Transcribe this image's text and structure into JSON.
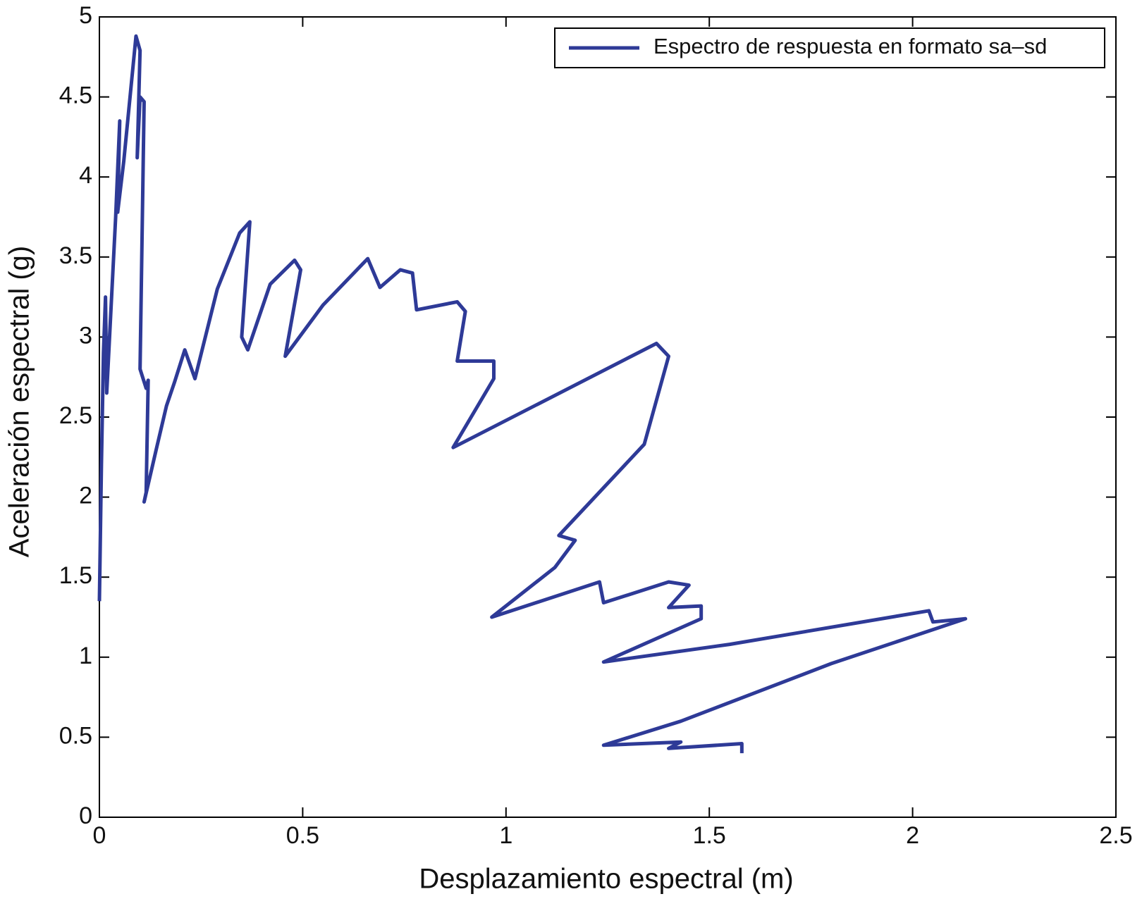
{
  "chart_data": {
    "type": "line",
    "xlabel": "Desplazamiento espectral (m)",
    "ylabel": "Aceleración espectral (g)",
    "xlim": [
      0,
      2.5
    ],
    "xticks": [
      0,
      0.5,
      1,
      1.5,
      2,
      2.5
    ],
    "ylim": [
      0,
      5
    ],
    "yticks": [
      0,
      0.5,
      1,
      1.5,
      2,
      2.5,
      3,
      3.5,
      4,
      4.5,
      5
    ],
    "legend": "upper right",
    "series": [
      {
        "name": "Espectro de respuesta en formato sa–sd",
        "color": "#2e3a97",
        "x": [
          0,
          0.005,
          0.01,
          0.015,
          0.018,
          0.025,
          0.04,
          0.05,
          0.045,
          0.06,
          0.09,
          0.1,
          0.093,
          0.1,
          0.11,
          0.1,
          0.115,
          0.12,
          0.115,
          0.11,
          0.14,
          0.165,
          0.185,
          0.21,
          0.235,
          0.29,
          0.345,
          0.37,
          0.35,
          0.365,
          0.42,
          0.48,
          0.495,
          0.457,
          0.55,
          0.66,
          0.69,
          0.74,
          0.77,
          0.78,
          0.88,
          0.9,
          0.88,
          0.97,
          0.97,
          0.87,
          1.37,
          1.4,
          1.34,
          1.13,
          1.17,
          1.12,
          0.965,
          1.23,
          1.24,
          1.4,
          1.45,
          1.4,
          1.48,
          1.48,
          1.24,
          1.55,
          2.04,
          2.05,
          2.13,
          1.8,
          1.43,
          1.24,
          1.43,
          1.4,
          1.58,
          1.58
        ],
        "values": [
          1.35,
          2.2,
          2.9,
          3.25,
          2.65,
          3.0,
          3.75,
          4.35,
          3.78,
          4.1,
          4.88,
          4.79,
          4.12,
          4.5,
          4.47,
          2.8,
          2.68,
          2.73,
          2.03,
          1.97,
          2.3,
          2.57,
          2.72,
          2.92,
          2.74,
          3.3,
          3.65,
          3.72,
          3.0,
          2.92,
          3.33,
          3.48,
          3.42,
          2.88,
          3.2,
          3.49,
          3.31,
          3.42,
          3.4,
          3.17,
          3.22,
          3.16,
          2.85,
          2.85,
          2.74,
          2.31,
          2.96,
          2.88,
          2.33,
          1.76,
          1.73,
          1.56,
          1.25,
          1.47,
          1.34,
          1.47,
          1.45,
          1.31,
          1.32,
          1.24,
          0.97,
          1.08,
          1.29,
          1.22,
          1.24,
          0.96,
          0.6,
          0.45,
          0.47,
          0.43,
          0.46,
          0.4
        ]
      }
    ]
  }
}
